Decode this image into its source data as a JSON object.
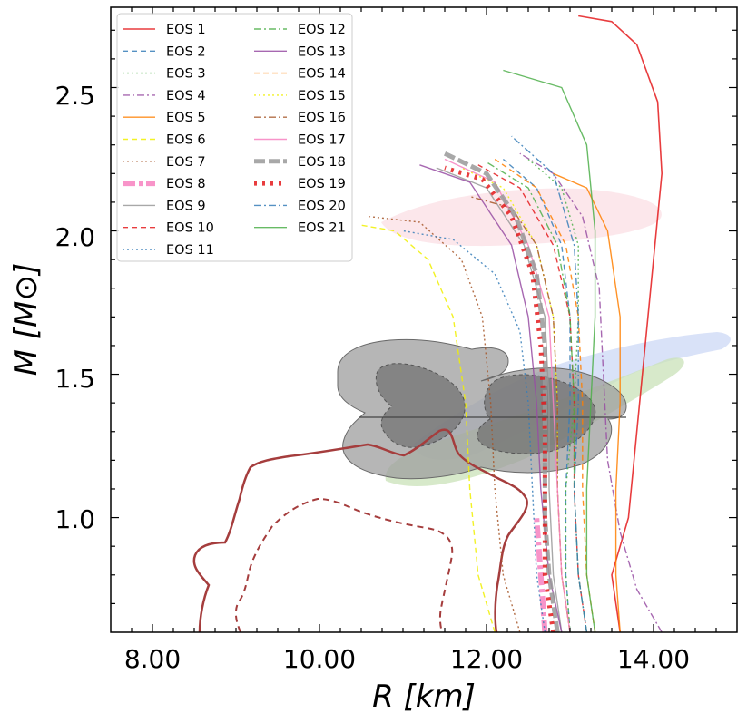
{
  "chart_data": {
    "type": "line",
    "xlabel": "R [km]",
    "ylabel": "M [M⊙]",
    "xlim": [
      7.5,
      15.0
    ],
    "ylim": [
      0.6,
      2.78
    ],
    "xticks": [
      8,
      10,
      12,
      14
    ],
    "xtick_labels": [
      "8.00",
      "10.00",
      "12.00",
      "14.00"
    ],
    "yticks": [
      1.0,
      1.5,
      2.0,
      2.5
    ],
    "ytick_labels": [
      "1.0",
      "1.5",
      "2.0",
      "2.5"
    ],
    "legend_position": "top-left",
    "grid": false,
    "series": [
      {
        "name": "EOS 1",
        "color": "#e41a1c",
        "dash": "",
        "width": 1.6,
        "points": [
          [
            13.6,
            0.6
          ],
          [
            13.5,
            0.8
          ],
          [
            13.7,
            1.0
          ],
          [
            13.8,
            1.3
          ],
          [
            13.9,
            1.6
          ],
          [
            14.0,
            1.9
          ],
          [
            14.1,
            2.2
          ],
          [
            14.05,
            2.45
          ],
          [
            13.8,
            2.65
          ],
          [
            13.5,
            2.73
          ],
          [
            13.1,
            2.75
          ]
        ]
      },
      {
        "name": "EOS 2",
        "color": "#377eb8",
        "dash": "6,4",
        "width": 1.4,
        "points": [
          [
            13.0,
            0.6
          ],
          [
            12.95,
            0.8
          ],
          [
            12.95,
            1.1
          ],
          [
            13.0,
            1.4
          ],
          [
            13.0,
            1.7
          ],
          [
            12.9,
            1.95
          ],
          [
            12.6,
            2.15
          ],
          [
            12.2,
            2.25
          ]
        ]
      },
      {
        "name": "EOS 3",
        "color": "#4daf4a",
        "dash": "2,3",
        "width": 1.4,
        "points": [
          [
            13.0,
            0.6
          ],
          [
            12.95,
            0.8
          ],
          [
            12.95,
            1.1
          ],
          [
            13.05,
            1.4
          ],
          [
            13.1,
            1.7
          ],
          [
            13.1,
            1.95
          ],
          [
            12.9,
            2.15
          ],
          [
            12.5,
            2.25
          ]
        ]
      },
      {
        "name": "EOS 4",
        "color": "#984ea3",
        "dash": "8,3,2,3",
        "width": 1.4,
        "points": [
          [
            14.1,
            0.6
          ],
          [
            13.8,
            0.75
          ],
          [
            13.6,
            0.95
          ],
          [
            13.45,
            1.2
          ],
          [
            13.4,
            1.5
          ],
          [
            13.35,
            1.8
          ],
          [
            13.15,
            2.05
          ],
          [
            12.8,
            2.2
          ],
          [
            12.4,
            2.27
          ]
        ]
      },
      {
        "name": "EOS 5",
        "color": "#ff7f00",
        "dash": "",
        "width": 1.4,
        "points": [
          [
            13.6,
            0.6
          ],
          [
            13.55,
            0.8
          ],
          [
            13.55,
            1.1
          ],
          [
            13.6,
            1.4
          ],
          [
            13.6,
            1.7
          ],
          [
            13.45,
            2.0
          ],
          [
            13.2,
            2.15
          ],
          [
            12.8,
            2.2
          ]
        ]
      },
      {
        "name": "EOS 6",
        "color": "#f0f000",
        "dash": "6,4",
        "width": 1.4,
        "points": [
          [
            12.1,
            0.6
          ],
          [
            11.9,
            0.8
          ],
          [
            11.8,
            1.1
          ],
          [
            11.75,
            1.4
          ],
          [
            11.6,
            1.7
          ],
          [
            11.3,
            1.9
          ],
          [
            10.9,
            2.0
          ],
          [
            10.5,
            2.02
          ]
        ]
      },
      {
        "name": "EOS 7",
        "color": "#a65628",
        "dash": "2,3",
        "width": 1.4,
        "points": [
          [
            12.4,
            0.6
          ],
          [
            12.2,
            0.8
          ],
          [
            12.1,
            1.1
          ],
          [
            12.05,
            1.4
          ],
          [
            11.95,
            1.7
          ],
          [
            11.7,
            1.9
          ],
          [
            11.2,
            2.03
          ],
          [
            10.6,
            2.05
          ]
        ]
      },
      {
        "name": "EOS 8",
        "color": "#f781bf",
        "dash": "14,4,4,4",
        "width": 6,
        "points": [
          [
            12.7,
            0.6
          ],
          [
            12.65,
            0.8
          ],
          [
            12.6,
            1.0
          ]
        ]
      },
      {
        "name": "EOS 9",
        "color": "#999999",
        "dash": "",
        "width": 1.4,
        "points": [
          [
            12.9,
            0.6
          ],
          [
            12.8,
            0.8
          ],
          [
            12.75,
            1.1
          ],
          [
            12.75,
            1.4
          ],
          [
            12.7,
            1.7
          ],
          [
            12.45,
            1.95
          ],
          [
            12.0,
            2.15
          ],
          [
            11.4,
            2.22
          ]
        ]
      },
      {
        "name": "EOS 10",
        "color": "#e41a1c",
        "dash": "6,4",
        "width": 1.4,
        "points": [
          [
            13.2,
            0.6
          ],
          [
            13.1,
            0.8
          ],
          [
            13.05,
            1.1
          ],
          [
            13.05,
            1.4
          ],
          [
            13.0,
            1.7
          ],
          [
            12.8,
            1.95
          ],
          [
            12.4,
            2.15
          ],
          [
            11.9,
            2.23
          ]
        ]
      },
      {
        "name": "EOS 11",
        "color": "#377eb8",
        "dash": "2,3",
        "width": 1.4,
        "points": [
          [
            12.7,
            0.6
          ],
          [
            12.6,
            0.8
          ],
          [
            12.55,
            1.1
          ],
          [
            12.5,
            1.4
          ],
          [
            12.4,
            1.65
          ],
          [
            12.1,
            1.85
          ],
          [
            11.6,
            1.97
          ],
          [
            11.0,
            2.0
          ]
        ]
      },
      {
        "name": "EOS 12",
        "color": "#4daf4a",
        "dash": "8,3,2,3",
        "width": 1.4,
        "points": [
          [
            13.2,
            0.6
          ],
          [
            13.1,
            0.8
          ],
          [
            13.05,
            1.1
          ],
          [
            13.05,
            1.4
          ],
          [
            13.0,
            1.7
          ],
          [
            12.85,
            1.95
          ],
          [
            12.5,
            2.15
          ],
          [
            12.0,
            2.24
          ]
        ]
      },
      {
        "name": "EOS 13",
        "color": "#984ea3",
        "dash": "",
        "width": 1.4,
        "points": [
          [
            12.9,
            0.6
          ],
          [
            12.75,
            0.8
          ],
          [
            12.65,
            1.1
          ],
          [
            12.6,
            1.4
          ],
          [
            12.5,
            1.7
          ],
          [
            12.3,
            1.95
          ],
          [
            11.8,
            2.17
          ],
          [
            11.2,
            2.23
          ]
        ]
      },
      {
        "name": "EOS 14",
        "color": "#ff7f00",
        "dash": "6,4",
        "width": 1.4,
        "points": [
          [
            13.3,
            0.6
          ],
          [
            13.2,
            0.8
          ],
          [
            13.15,
            1.1
          ],
          [
            13.15,
            1.4
          ],
          [
            13.1,
            1.7
          ],
          [
            12.95,
            1.95
          ],
          [
            12.6,
            2.15
          ],
          [
            12.1,
            2.25
          ]
        ]
      },
      {
        "name": "EOS 15",
        "color": "#f0f000",
        "dash": "2,3",
        "width": 1.4,
        "points": [
          [
            13.0,
            0.6
          ],
          [
            12.9,
            0.8
          ],
          [
            12.85,
            1.1
          ],
          [
            12.85,
            1.4
          ],
          [
            12.8,
            1.7
          ],
          [
            12.6,
            1.95
          ],
          [
            12.2,
            2.15
          ],
          [
            11.7,
            2.22
          ]
        ]
      },
      {
        "name": "EOS 16",
        "color": "#a65628",
        "dash": "8,3,2,3",
        "width": 1.4,
        "points": [
          [
            13.0,
            0.6
          ],
          [
            12.9,
            0.8
          ],
          [
            12.85,
            1.1
          ],
          [
            12.85,
            1.4
          ],
          [
            12.8,
            1.7
          ],
          [
            12.6,
            1.95
          ],
          [
            12.3,
            2.08
          ],
          [
            11.8,
            2.12
          ]
        ]
      },
      {
        "name": "EOS 17",
        "color": "#f781bf",
        "dash": "",
        "width": 1.4,
        "points": [
          [
            13.0,
            0.6
          ],
          [
            12.9,
            0.8
          ],
          [
            12.85,
            1.1
          ],
          [
            12.8,
            1.4
          ],
          [
            12.75,
            1.7
          ],
          [
            12.5,
            1.95
          ],
          [
            12.1,
            2.17
          ],
          [
            11.5,
            2.25
          ]
        ]
      },
      {
        "name": "EOS 18",
        "color": "#999999",
        "dash": "12,4",
        "width": 5,
        "points": [
          [
            12.85,
            0.6
          ],
          [
            12.75,
            0.8
          ],
          [
            12.7,
            1.0
          ],
          [
            12.7,
            1.3
          ],
          [
            12.7,
            1.6
          ],
          [
            12.6,
            1.85
          ],
          [
            12.35,
            2.05
          ],
          [
            12.0,
            2.2
          ],
          [
            11.5,
            2.27
          ]
        ]
      },
      {
        "name": "EOS 19",
        "color": "#e41a1c",
        "dash": "3,6",
        "width": 5,
        "points": [
          [
            12.8,
            0.6
          ],
          [
            12.7,
            0.8
          ],
          [
            12.7,
            1.0
          ],
          [
            12.7,
            1.3
          ],
          [
            12.65,
            1.6
          ],
          [
            12.55,
            1.85
          ],
          [
            12.3,
            2.05
          ],
          [
            11.95,
            2.18
          ],
          [
            11.5,
            2.22
          ]
        ]
      },
      {
        "name": "EOS 20",
        "color": "#377eb8",
        "dash": "8,3,2,3",
        "width": 1.4,
        "points": [
          [
            13.2,
            0.6
          ],
          [
            13.1,
            0.8
          ],
          [
            13.05,
            1.1
          ],
          [
            13.1,
            1.4
          ],
          [
            13.1,
            1.7
          ],
          [
            13.05,
            1.95
          ],
          [
            12.8,
            2.2
          ],
          [
            12.3,
            2.33
          ]
        ]
      },
      {
        "name": "EOS 21",
        "color": "#4daf4a",
        "dash": "",
        "width": 1.4,
        "points": [
          [
            13.3,
            0.6
          ],
          [
            13.2,
            0.8
          ],
          [
            13.2,
            1.1
          ],
          [
            13.25,
            1.4
          ],
          [
            13.3,
            1.7
          ],
          [
            13.3,
            2.0
          ],
          [
            13.2,
            2.3
          ],
          [
            12.9,
            2.5
          ],
          [
            12.2,
            2.56
          ]
        ]
      }
    ],
    "colors": {
      "pink_band": "#fce1e6",
      "blue_band": "#d8e2f8",
      "green_band": "#d5e8c9",
      "grey_light": "#a0a0a0",
      "grey_dark": "#7a7a7a",
      "brown_contour": "#a53d3d"
    }
  }
}
